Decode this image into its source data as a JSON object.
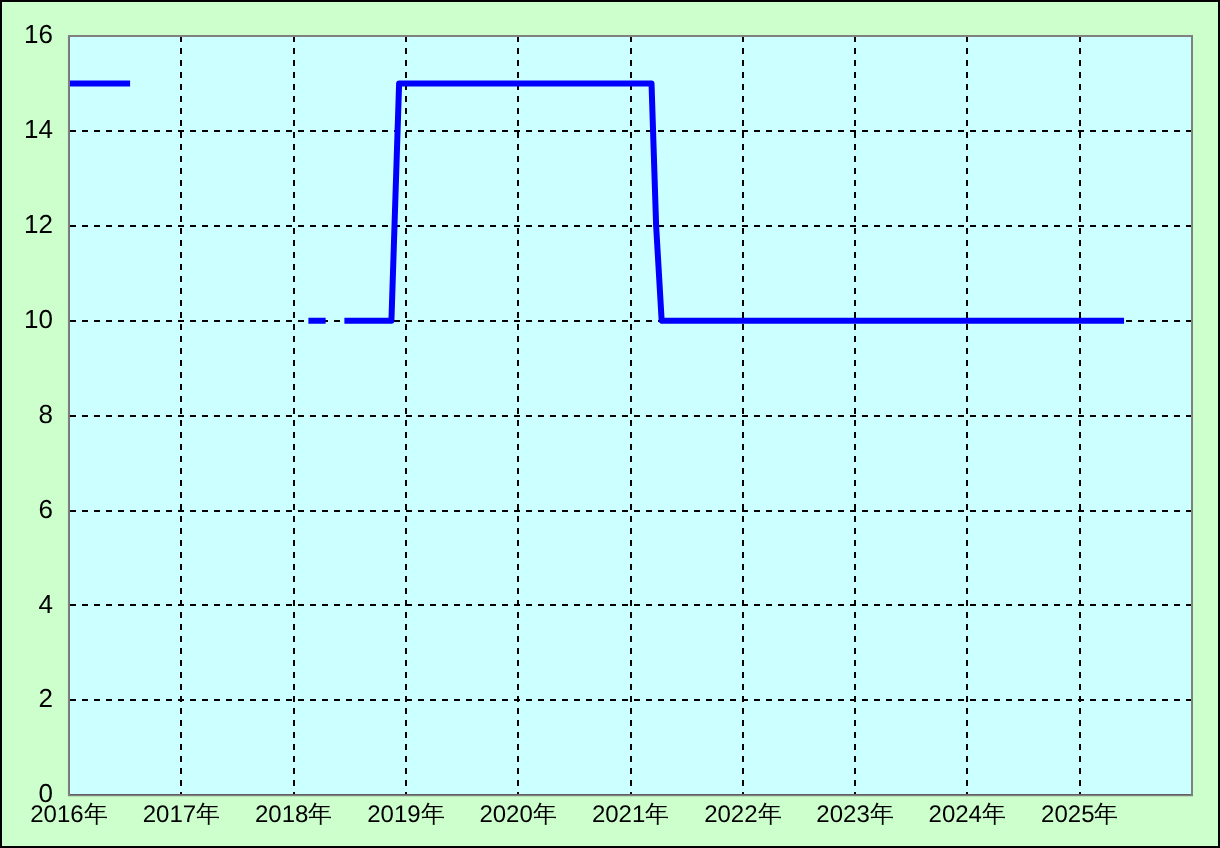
{
  "chart_data": {
    "type": "line",
    "x": [
      "2016-01-01",
      "2016-07-18",
      "2017-06-01",
      "2018-02-18",
      "2018-04-15",
      "2018-05-15",
      "2018-06-15",
      "2018-11-15",
      "2018-11-25",
      "2018-12-10",
      "2021-03-10",
      "2021-03-25",
      "2021-04-12",
      "2025-05-25"
    ],
    "series": [
      {
        "color": "#0000ff",
        "values": [
          15,
          15,
          null,
          10,
          10,
          null,
          10,
          10,
          12,
          15,
          15,
          12,
          10,
          10
        ]
      }
    ],
    "xlim": [
      "2016-01-01",
      "2026-01-01"
    ],
    "xticks": [
      {
        "value": "2016-01-01",
        "label": "2016年"
      },
      {
        "value": "2017-01-01",
        "label": "2017年"
      },
      {
        "value": "2018-01-01",
        "label": "2018年"
      },
      {
        "value": "2019-01-01",
        "label": "2019年"
      },
      {
        "value": "2020-01-01",
        "label": "2020年"
      },
      {
        "value": "2021-01-01",
        "label": "2021年"
      },
      {
        "value": "2022-01-01",
        "label": "2022年"
      },
      {
        "value": "2023-01-01",
        "label": "2023年"
      },
      {
        "value": "2024-01-01",
        "label": "2024年"
      },
      {
        "value": "2025-01-01",
        "label": "2025年"
      }
    ],
    "ylim": [
      0,
      16
    ],
    "yticks": [
      0,
      2,
      4,
      6,
      8,
      10,
      12,
      14,
      16
    ],
    "grid": true,
    "legend": false,
    "marker": "none",
    "line_style": "solid"
  }
}
